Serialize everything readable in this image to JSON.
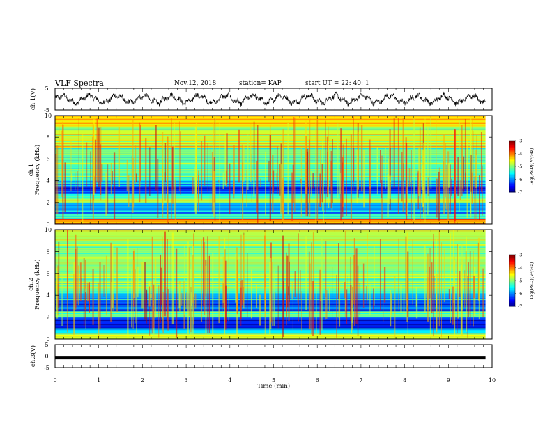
{
  "header": {
    "title": "VLF Spectra",
    "date": "Nov.12, 2018",
    "station": "station= KAP",
    "start_ut": "start  UT =   22: 40: 1"
  },
  "chart_data": [
    {
      "type": "line",
      "panel": "ch1-waveform",
      "ylabel": "ch.1(V)",
      "ylim": [
        -5,
        5
      ],
      "yticks": [
        "5",
        "-5"
      ],
      "xlim": [
        0,
        10
      ],
      "description_note": ""
    },
    {
      "type": "heatmap",
      "panel": "ch1-spectrogram",
      "ylabel_line1": "ch.1",
      "ylabel_line2": "Frequency  (kHz)",
      "ylim": [
        0,
        10
      ],
      "yticks": [
        "0",
        "2",
        "4",
        "6",
        "8",
        "10"
      ],
      "xlim": [
        0,
        10
      ],
      "colorbar": {
        "label": "log(PSD)(V²/Hz)",
        "range": [
          -7,
          -3
        ],
        "ticks": [
          "-3",
          "-4",
          "-5",
          "-6",
          "-7"
        ]
      }
    },
    {
      "type": "heatmap",
      "panel": "ch2-spectrogram",
      "ylabel_line1": "ch.2",
      "ylabel_line2": "Frequency  (kHz)",
      "ylim": [
        0,
        10
      ],
      "yticks": [
        "0",
        "2",
        "4",
        "6",
        "8",
        "10"
      ],
      "xlim": [
        0,
        10
      ],
      "colorbar": {
        "label": "log(PSD)(V²/Hz)",
        "range": [
          -7,
          -3
        ],
        "ticks": [
          "-3",
          "-4",
          "-5",
          "-6",
          "-7"
        ]
      }
    },
    {
      "type": "line",
      "panel": "ch3-waveform",
      "ylabel": "ch.3(V)",
      "ylim": [
        -5,
        5
      ],
      "yticks": [
        "5",
        "0",
        "-5"
      ],
      "xlim": [
        0,
        10
      ],
      "level": -0.8
    }
  ],
  "xaxis": {
    "label": "Time  (min)",
    "ticks": [
      "0",
      "1",
      "2",
      "3",
      "4",
      "5",
      "6",
      "7",
      "8",
      "9",
      "10"
    ]
  }
}
